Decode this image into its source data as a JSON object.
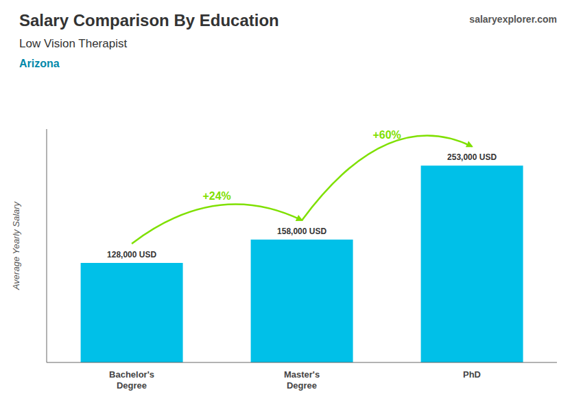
{
  "chart_data": {
    "type": "bar",
    "title": "Salary Comparison By Education",
    "subtitle": "Low Vision Therapist",
    "location": "Arizona",
    "source": "salaryexplorer.com",
    "ylabel": "Average Yearly Salary",
    "categories": [
      "Bachelor's\nDegree",
      "Master's\nDegree",
      "PhD"
    ],
    "values": [
      128000,
      158000,
      253000
    ],
    "value_labels": [
      "128,000 USD",
      "158,000 USD",
      "253,000 USD"
    ],
    "data_labels": true,
    "color": "#00C0E8",
    "ylim": [
      0,
      300000
    ],
    "tick_labels": "x",
    "grid": false,
    "annotations": [
      {
        "text": "+24%",
        "from": "Bachelor's\nDegree",
        "to": "Master's\nDegree",
        "color": "#7FE000"
      },
      {
        "text": "+60%",
        "from": "Master's\nDegree",
        "to": "PhD",
        "color": "#7FE000"
      }
    ]
  }
}
